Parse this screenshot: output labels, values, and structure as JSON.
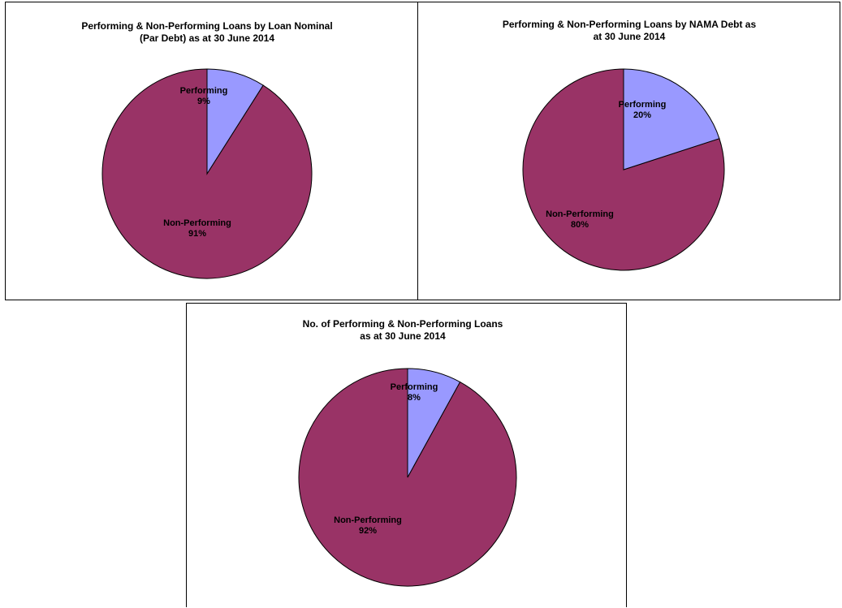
{
  "colors": {
    "performing": "#9999ff",
    "non_performing": "#993366",
    "outline": "#000000"
  },
  "chart_data": [
    {
      "type": "pie",
      "title_lines": [
        "Performing & Non-Performing Loans by Loan  Nominal",
        "(Par Debt) as at 30 June 2014"
      ],
      "slices": [
        {
          "label": "Performing",
          "value": 9,
          "pct_label": "9%",
          "color": "#9999ff"
        },
        {
          "label": "Non-Performing",
          "value": 91,
          "pct_label": "91%",
          "color": "#993366"
        }
      ]
    },
    {
      "type": "pie",
      "title_lines": [
        "Performing & Non-Performing Loans by NAMA Debt as",
        "at 30 June 2014"
      ],
      "slices": [
        {
          "label": "Performing",
          "value": 20,
          "pct_label": "20%",
          "color": "#9999ff"
        },
        {
          "label": "Non-Performing",
          "value": 80,
          "pct_label": "80%",
          "color": "#993366"
        }
      ]
    },
    {
      "type": "pie",
      "title_lines": [
        "No. of Performing & Non-Performing Loans",
        "as at 30 June 2014"
      ],
      "slices": [
        {
          "label": "Performing",
          "value": 8,
          "pct_label": "8%",
          "color": "#9999ff"
        },
        {
          "label": "Non-Performing",
          "value": 92,
          "pct_label": "92%",
          "color": "#993366"
        }
      ]
    }
  ]
}
